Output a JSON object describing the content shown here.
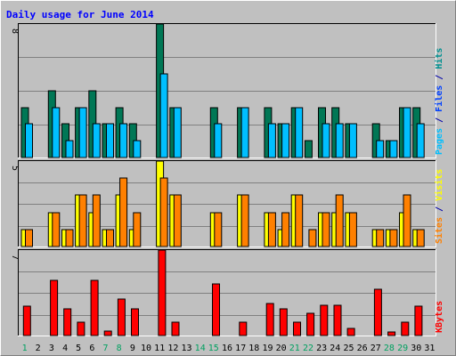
{
  "chart_data": {
    "type": "bar",
    "title": "Daily usage for June 2014",
    "categories": [
      "1",
      "2",
      "3",
      "4",
      "5",
      "6",
      "7",
      "8",
      "9",
      "10",
      "11",
      "12",
      "13",
      "14",
      "15",
      "16",
      "17",
      "18",
      "19",
      "20",
      "21",
      "22",
      "23",
      "24",
      "25",
      "26",
      "27",
      "28",
      "29",
      "30",
      "31"
    ],
    "weekend_days": [
      "1",
      "7",
      "8",
      "14",
      "15",
      "21",
      "22",
      "28",
      "29"
    ],
    "panels": [
      {
        "id": "top",
        "max_label": "8",
        "ylim": [
          0,
          8
        ],
        "legend": [
          {
            "text": "Pages",
            "color": "#00bfff"
          },
          {
            "text": " / ",
            "color": "#0000aa"
          },
          {
            "text": "Files",
            "color": "#0040ff"
          },
          {
            "text": " / ",
            "color": "#0000aa"
          },
          {
            "text": "Hits",
            "color": "#009090"
          }
        ],
        "series": [
          {
            "name": "Hits",
            "color": "#007755",
            "values": [
              3,
              0,
              4,
              2,
              3,
              4,
              2,
              3,
              2,
              0,
              8,
              3,
              0,
              0,
              3,
              0,
              3,
              0,
              3,
              2,
              3,
              1,
              3,
              3,
              2,
              0,
              2,
              1,
              3,
              3,
              0
            ]
          },
          {
            "name": "Files",
            "color": "#00bfff",
            "values": [
              2,
              0,
              3,
              1,
              3,
              2,
              2,
              2,
              1,
              0,
              5,
              3,
              0,
              0,
              2,
              0,
              3,
              0,
              2,
              2,
              3,
              0,
              2,
              2,
              2,
              0,
              1,
              1,
              3,
              2,
              0
            ]
          }
        ]
      },
      {
        "id": "middle",
        "max_label": "5",
        "ylim": [
          0,
          5
        ],
        "legend": [
          {
            "text": "Sites",
            "color": "#ff8000"
          },
          {
            "text": " / ",
            "color": "#0000aa"
          },
          {
            "text": "Visits",
            "color": "#ffff00"
          }
        ],
        "series": [
          {
            "name": "Visits",
            "color": "#ffff00",
            "values": [
              1,
              0,
              2,
              1,
              3,
              2,
              1,
              3,
              1,
              0,
              5,
              3,
              0,
              0,
              2,
              0,
              3,
              0,
              2,
              1,
              3,
              0,
              2,
              2,
              2,
              0,
              1,
              1,
              2,
              1,
              0
            ]
          },
          {
            "name": "Sites",
            "color": "#ff8000",
            "values": [
              1,
              0,
              2,
              1,
              3,
              3,
              1,
              4,
              2,
              0,
              4,
              3,
              0,
              0,
              2,
              0,
              3,
              0,
              2,
              2,
              3,
              1,
              2,
              3,
              2,
              0,
              1,
              1,
              3,
              1,
              0
            ]
          }
        ]
      },
      {
        "id": "bottom",
        "max_label": "7",
        "ylim": [
          0,
          7
        ],
        "legend": [
          {
            "text": "KBytes",
            "color": "#ff0000"
          }
        ],
        "series": [
          {
            "name": "KBytes",
            "color": "#ff0000",
            "values": [
              2.4,
              0,
              4.5,
              2.2,
              1.1,
              4.5,
              0.4,
              3.0,
              2.2,
              0,
              7.0,
              1.1,
              0,
              0,
              4.2,
              0,
              1.1,
              0,
              2.6,
              2.2,
              1.1,
              1.8,
              2.5,
              2.5,
              0.6,
              0,
              3.8,
              0.3,
              1.1,
              2.4,
              0
            ]
          }
        ]
      }
    ]
  }
}
